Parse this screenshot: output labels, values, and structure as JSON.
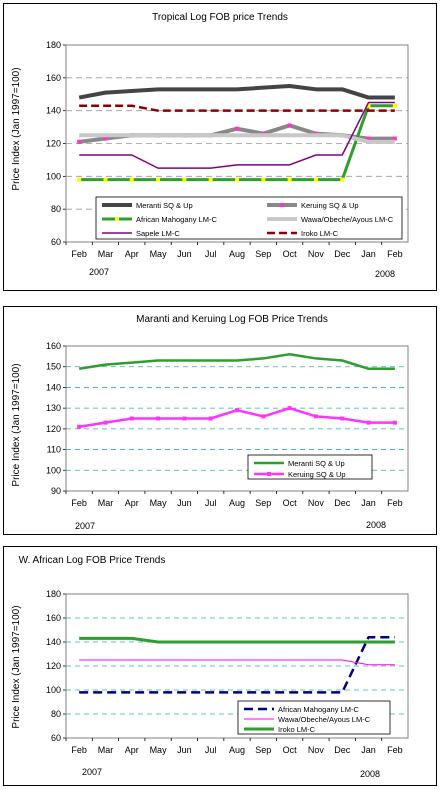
{
  "chart_data": [
    {
      "type": "line",
      "title": "Tropical Log FOB price Trends",
      "ylabel": "Price Index (Jan 1997=100)",
      "ylim": [
        60,
        180
      ],
      "yticks": [
        60,
        80,
        100,
        120,
        140,
        160,
        180
      ],
      "grid": true,
      "legend_position": "bottom",
      "categories": [
        "Feb",
        "Mar",
        "Apr",
        "May",
        "Jun",
        "Jul",
        "Aug",
        "Sep",
        "Oct",
        "Nov",
        "Dec",
        "Jan",
        "Feb"
      ],
      "year_labels": [
        "2007",
        "2008"
      ],
      "series": [
        {
          "name": "Meranti SQ & Up",
          "color": "#444444",
          "values": [
            148,
            151,
            152,
            153,
            153,
            153,
            153,
            154,
            155,
            153,
            153,
            148,
            148
          ]
        },
        {
          "name": "Keruing SQ & Up",
          "color": "#888888",
          "marker_color": "#ff33cc",
          "values": [
            121,
            123,
            125,
            125,
            125,
            125,
            129,
            126,
            131,
            126,
            125,
            123,
            123
          ]
        },
        {
          "name": "African Mahogany LM-C",
          "color": "#2e9e2e",
          "marker_color": "#ffff00",
          "values": [
            98,
            98,
            98,
            98,
            98,
            98,
            98,
            98,
            98,
            98,
            98,
            143,
            143
          ]
        },
        {
          "name": "Wawa/Obeche/Ayous LM-C",
          "color": "#c8c8c8",
          "values": [
            125,
            125,
            125,
            125,
            125,
            125,
            125,
            125,
            125,
            125,
            125,
            121,
            121
          ]
        },
        {
          "name": "Sapele LM-C",
          "color": "#800080",
          "values": [
            113,
            113,
            113,
            105,
            105,
            105,
            107,
            107,
            107,
            113,
            113,
            145,
            145
          ]
        },
        {
          "name": "Iroko LM-C",
          "color": "#8b0000",
          "values": [
            143,
            143,
            143,
            140,
            140,
            140,
            140,
            140,
            140,
            140,
            140,
            140,
            140
          ]
        }
      ]
    },
    {
      "type": "line",
      "title": "Maranti and Keruing Log FOB Price Trends",
      "ylabel": "Price Index (Jan 1997=100)",
      "ylim": [
        90,
        160
      ],
      "yticks": [
        90,
        100,
        110,
        120,
        130,
        140,
        150,
        160
      ],
      "grid": true,
      "legend_position": "bottom-right",
      "categories": [
        "Feb",
        "Mar",
        "Apr",
        "May",
        "Jun",
        "Jul",
        "Aug",
        "Sep",
        "Oct",
        "Nov",
        "Dec",
        "Jan",
        "Feb"
      ],
      "year_labels": [
        "2007",
        "2008"
      ],
      "series": [
        {
          "name": "Meranti SQ & Up",
          "color": "#2e9e2e",
          "values": [
            149,
            151,
            152,
            153,
            153,
            153,
            153,
            154,
            156,
            154,
            153,
            149,
            149
          ]
        },
        {
          "name": "Keruing SQ & Up",
          "color": "#ff33ff",
          "values": [
            121,
            123,
            125,
            125,
            125,
            125,
            129,
            126,
            130,
            126,
            125,
            123,
            123
          ]
        }
      ]
    },
    {
      "type": "line",
      "title": "W. African Log FOB Price Trends",
      "ylabel": "Price Index (Jan 1997=100)",
      "ylim": [
        60,
        180
      ],
      "yticks": [
        60,
        80,
        100,
        120,
        140,
        160,
        180
      ],
      "grid": true,
      "legend_position": "bottom-right",
      "categories": [
        "Feb",
        "Mar",
        "Apr",
        "May",
        "Jun",
        "Jul",
        "Aug",
        "Sep",
        "Oct",
        "Nov",
        "Dec",
        "Jan",
        "Feb"
      ],
      "year_labels": [
        "2007",
        "2008"
      ],
      "series": [
        {
          "name": "African Mahogany LM-C",
          "color": "#000080",
          "values": [
            98,
            98,
            98,
            98,
            98,
            98,
            98,
            98,
            98,
            98,
            98,
            144,
            144
          ]
        },
        {
          "name": "Wawa/Obeche/Ayous LM-C",
          "color": "#ff00ff",
          "values": [
            125,
            125,
            125,
            125,
            125,
            125,
            125,
            125,
            125,
            125,
            125,
            121,
            121
          ]
        },
        {
          "name": "Iroko LM-C",
          "color": "#2e9e2e",
          "values": [
            143,
            143,
            143,
            140,
            140,
            140,
            140,
            140,
            140,
            140,
            140,
            140,
            140
          ]
        }
      ]
    }
  ]
}
